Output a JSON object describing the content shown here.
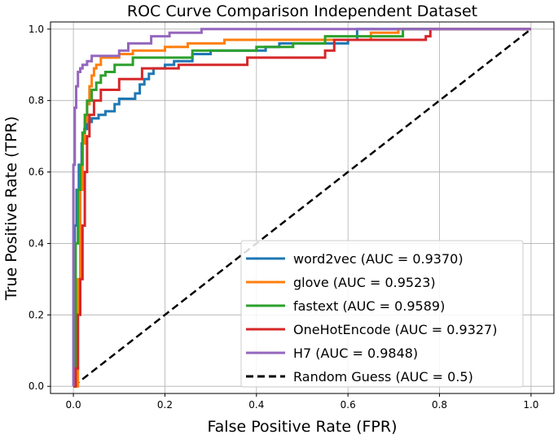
{
  "chart_data": {
    "type": "line",
    "title": "ROC Curve Comparison  Independent Dataset",
    "xlabel": "False Positive Rate (FPR)",
    "ylabel": "True Positive Rate (TPR)",
    "xlim": [
      -0.05,
      1.05
    ],
    "ylim": [
      -0.02,
      1.02
    ],
    "xticks": [
      0.0,
      0.2,
      0.4,
      0.6,
      0.8,
      1.0
    ],
    "yticks": [
      0.0,
      0.2,
      0.4,
      0.6,
      0.8,
      1.0
    ],
    "xtick_labels": [
      "0.0",
      "0.2",
      "0.4",
      "0.6",
      "0.8",
      "1.0"
    ],
    "ytick_labels": [
      "0.0",
      "0.2",
      "0.4",
      "0.6",
      "0.8",
      "1.0"
    ],
    "grid": true,
    "legend_position": "lower right",
    "series": [
      {
        "name": "word2vec",
        "label": "word2vec (AUC = 0.9370)",
        "color": "#1f77b4",
        "style": "solid",
        "x": [
          0,
          0.003,
          0.003,
          0.007,
          0.007,
          0.012,
          0.012,
          0.018,
          0.018,
          0.024,
          0.024,
          0.03,
          0.03,
          0.04,
          0.04,
          0.055,
          0.055,
          0.07,
          0.07,
          0.09,
          0.09,
          0.1,
          0.1,
          0.135,
          0.135,
          0.145,
          0.145,
          0.155,
          0.155,
          0.165,
          0.165,
          0.175,
          0.175,
          0.2,
          0.2,
          0.22,
          0.22,
          0.26,
          0.26,
          0.3,
          0.3,
          0.42,
          0.42,
          0.45,
          0.45,
          0.6,
          0.6,
          0.62,
          0.62,
          1.0
        ],
        "y": [
          0,
          0,
          0.45,
          0.45,
          0.55,
          0.55,
          0.62,
          0.62,
          0.68,
          0.68,
          0.72,
          0.72,
          0.74,
          0.74,
          0.75,
          0.75,
          0.76,
          0.76,
          0.77,
          0.77,
          0.79,
          0.79,
          0.805,
          0.805,
          0.82,
          0.82,
          0.845,
          0.845,
          0.86,
          0.86,
          0.875,
          0.875,
          0.89,
          0.89,
          0.9,
          0.9,
          0.91,
          0.91,
          0.93,
          0.93,
          0.94,
          0.94,
          0.95,
          0.95,
          0.96,
          0.96,
          0.97,
          0.97,
          1.0,
          1.0
        ]
      },
      {
        "name": "glove",
        "label": "glove (AUC = 0.9523)",
        "color": "#ff7f0e",
        "style": "solid",
        "x": [
          0,
          0.01,
          0.01,
          0.015,
          0.015,
          0.02,
          0.02,
          0.025,
          0.025,
          0.03,
          0.03,
          0.035,
          0.035,
          0.04,
          0.04,
          0.045,
          0.045,
          0.05,
          0.05,
          0.06,
          0.06,
          0.1,
          0.1,
          0.13,
          0.13,
          0.2,
          0.2,
          0.25,
          0.25,
          0.33,
          0.33,
          0.65,
          0.65,
          0.71,
          0.71,
          1.0
        ],
        "y": [
          0,
          0,
          0.3,
          0.3,
          0.55,
          0.55,
          0.68,
          0.68,
          0.74,
          0.74,
          0.79,
          0.79,
          0.84,
          0.84,
          0.87,
          0.87,
          0.89,
          0.89,
          0.9,
          0.9,
          0.92,
          0.92,
          0.93,
          0.93,
          0.94,
          0.94,
          0.95,
          0.95,
          0.96,
          0.96,
          0.97,
          0.97,
          0.99,
          0.99,
          1.0,
          1.0
        ]
      },
      {
        "name": "fastext",
        "label": "fastext (AUC = 0.9589)",
        "color": "#2ca02c",
        "style": "solid",
        "x": [
          0,
          0.005,
          0.005,
          0.01,
          0.01,
          0.015,
          0.015,
          0.02,
          0.02,
          0.025,
          0.025,
          0.03,
          0.03,
          0.04,
          0.04,
          0.05,
          0.05,
          0.06,
          0.06,
          0.07,
          0.07,
          0.09,
          0.09,
          0.13,
          0.13,
          0.26,
          0.26,
          0.4,
          0.4,
          0.48,
          0.48,
          0.55,
          0.55,
          0.72,
          0.72,
          1.0
        ],
        "y": [
          0,
          0,
          0.4,
          0.4,
          0.55,
          0.55,
          0.62,
          0.62,
          0.71,
          0.71,
          0.76,
          0.76,
          0.8,
          0.8,
          0.83,
          0.83,
          0.85,
          0.85,
          0.87,
          0.87,
          0.88,
          0.88,
          0.9,
          0.9,
          0.92,
          0.92,
          0.94,
          0.94,
          0.95,
          0.95,
          0.96,
          0.96,
          0.98,
          0.98,
          1.0,
          1.0
        ]
      },
      {
        "name": "OneHotEncode",
        "label": "OneHotEncode (AUC = 0.9327)",
        "color": "#d62728",
        "style": "solid",
        "x": [
          0,
          0.005,
          0.005,
          0.01,
          0.01,
          0.015,
          0.015,
          0.02,
          0.02,
          0.025,
          0.025,
          0.03,
          0.03,
          0.035,
          0.035,
          0.045,
          0.045,
          0.06,
          0.06,
          0.1,
          0.1,
          0.15,
          0.15,
          0.23,
          0.23,
          0.38,
          0.38,
          0.55,
          0.55,
          0.57,
          0.57,
          0.77,
          0.77,
          0.78,
          0.78,
          1.0
        ],
        "y": [
          0,
          0,
          0.05,
          0.05,
          0.2,
          0.2,
          0.3,
          0.3,
          0.45,
          0.45,
          0.6,
          0.6,
          0.7,
          0.7,
          0.76,
          0.76,
          0.8,
          0.8,
          0.83,
          0.83,
          0.86,
          0.86,
          0.89,
          0.89,
          0.9,
          0.9,
          0.92,
          0.92,
          0.94,
          0.94,
          0.97,
          0.97,
          0.98,
          0.98,
          1.0,
          1.0
        ]
      },
      {
        "name": "H7",
        "label": "H7 (AUC = 0.9848)",
        "color": "#9467bd",
        "style": "solid",
        "x": [
          0,
          0,
          0,
          0.003,
          0.003,
          0.006,
          0.006,
          0.01,
          0.01,
          0.015,
          0.015,
          0.02,
          0.02,
          0.03,
          0.03,
          0.04,
          0.04,
          0.1,
          0.1,
          0.12,
          0.12,
          0.17,
          0.17,
          0.21,
          0.21,
          0.28,
          0.28,
          0.6,
          0.6,
          1.0
        ],
        "y": [
          0,
          0,
          0.62,
          0.62,
          0.78,
          0.78,
          0.84,
          0.84,
          0.88,
          0.88,
          0.89,
          0.89,
          0.9,
          0.9,
          0.91,
          0.91,
          0.925,
          0.925,
          0.94,
          0.94,
          0.96,
          0.96,
          0.98,
          0.98,
          0.99,
          0.99,
          1.0,
          1.0,
          1.0,
          1.0
        ]
      },
      {
        "name": "Random Guess",
        "label": "Random Guess (AUC = 0.5)",
        "color": "#000000",
        "style": "dashed",
        "x": [
          0,
          1
        ],
        "y": [
          0,
          1
        ]
      }
    ]
  }
}
